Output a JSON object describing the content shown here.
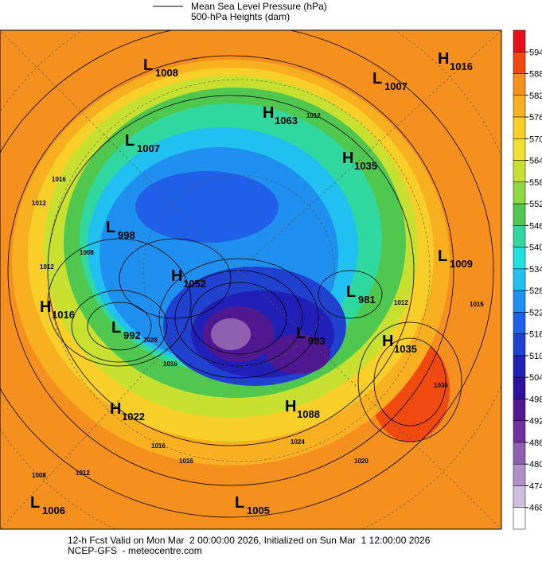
{
  "legend": {
    "line_label": "Mean Sea Level Pressure (hPa)",
    "fill_label": "500-hPa Heights (dam)"
  },
  "pressure_centers": [
    {
      "type": "L",
      "value": 1008
    },
    {
      "type": "H",
      "value": 1016
    },
    {
      "type": "L",
      "value": 1007
    },
    {
      "type": "H",
      "value": 1063
    },
    {
      "type": "L",
      "value": 1007
    },
    {
      "type": "H",
      "value": 1035
    },
    {
      "type": "L",
      "value": 998
    },
    {
      "type": "L",
      "value": 1009
    },
    {
      "type": "H",
      "value": 1052
    },
    {
      "type": "L",
      "value": 981
    },
    {
      "type": "H",
      "value": 1016
    },
    {
      "type": "L",
      "value": 992
    },
    {
      "type": "L",
      "value": 983
    },
    {
      "type": "H",
      "value": 1035
    },
    {
      "type": "H",
      "value": 1088
    },
    {
      "type": "H",
      "value": 1022
    },
    {
      "type": "L",
      "value": 1006
    },
    {
      "type": "L",
      "value": 1005
    }
  ],
  "contour_labels": [
    1012,
    1016,
    1012,
    1008,
    1012,
    1016,
    1012,
    1016,
    1028,
    1016,
    1024,
    1020,
    1008,
    1012,
    1016,
    1036
  ],
  "colorbar": {
    "ticks": [
      594,
      588,
      582,
      576,
      570,
      564,
      558,
      552,
      546,
      540,
      534,
      528,
      522,
      516,
      510,
      504,
      498,
      492,
      486,
      480,
      474,
      468
    ],
    "colors": [
      "#e8101a",
      "#f04a10",
      "#f5901e",
      "#f8b020",
      "#f7cf28",
      "#f0e030",
      "#c8e030",
      "#90d840",
      "#50c850",
      "#30d8a0",
      "#20e0e0",
      "#20c0f0",
      "#2090f0",
      "#2060e8",
      "#2040d0",
      "#2020b8",
      "#3010a0",
      "#501890",
      "#7030a0",
      "#9060b0",
      "#b090c8",
      "#d0c0e0",
      "#ffffff"
    ]
  },
  "footer": {
    "line1": "12-h Fcst Valid on Mon Mar  2 00:00:00 2026, Initialized on Sun Mar  1 12:00:00 2026",
    "line2": "NCEP-GFS  - meteocentre.com"
  }
}
